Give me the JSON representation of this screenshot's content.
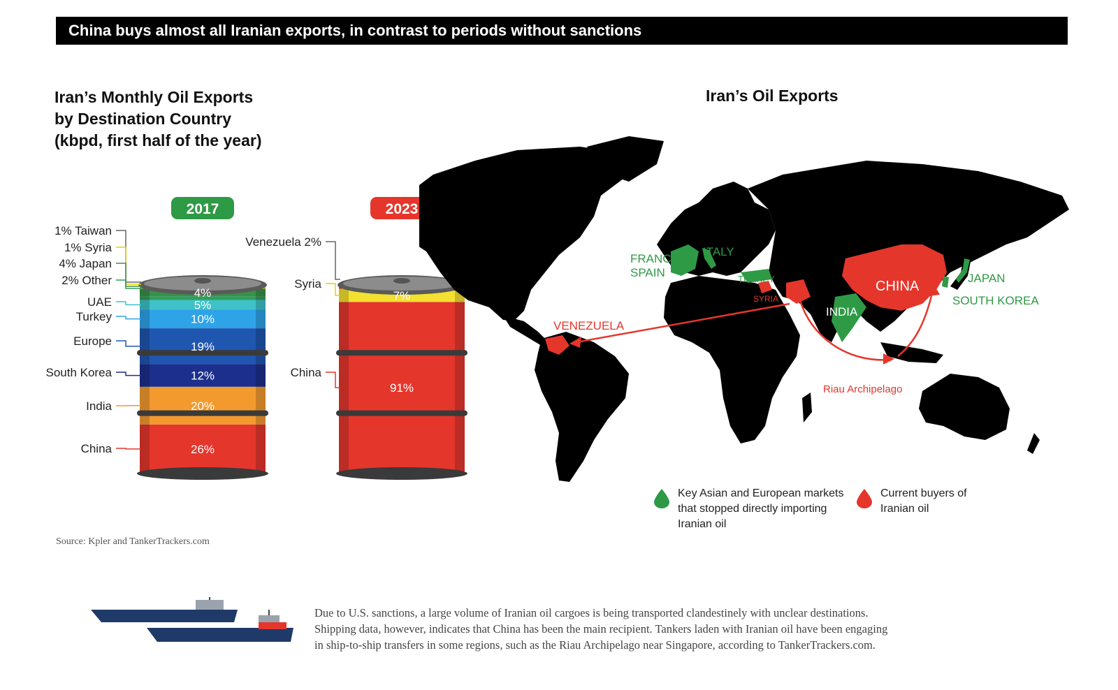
{
  "header": {
    "title": "China buys almost all Iranian exports, in contrast to periods without sanctions"
  },
  "left_title": [
    "Iran’s Monthly Oil Exports",
    "by Destination Country",
    "(kbpd, first half of the year)"
  ],
  "map_title": "Iran’s Oil Exports",
  "chart_data": [
    {
      "type": "bar",
      "title": "2017",
      "stacked": true,
      "segments": [
        {
          "name": "China",
          "value": 26,
          "label": "26%",
          "color": "#e5362c"
        },
        {
          "name": "India",
          "value": 20,
          "label": "20%",
          "color": "#f39a2f"
        },
        {
          "name": "South Korea",
          "value": 12,
          "label": "12%",
          "color": "#1c2f8c"
        },
        {
          "name": "Europe",
          "value": 19,
          "label": "19%",
          "color": "#1f56b0"
        },
        {
          "name": "Turkey",
          "value": 10,
          "label": "10%",
          "color": "#2ea3e8"
        },
        {
          "name": "UAE",
          "value": 5,
          "label": "5%",
          "color": "#3ec1c9"
        },
        {
          "name": "Other",
          "value": 2,
          "label": "",
          "color": "#2f9e5a"
        },
        {
          "name": "Japan",
          "value": 4,
          "label": "4%",
          "color": "#3a8f4a"
        },
        {
          "name": "Syria",
          "value": 1,
          "label": "",
          "color": "#f4e030"
        },
        {
          "name": "Taiwan",
          "value": 1,
          "label": "",
          "color": "#e9d44a"
        }
      ],
      "callouts": [
        {
          "text": "1% Taiwan",
          "line_color": "#666666"
        },
        {
          "text": "1% Syria",
          "line_color": "#e6d200"
        },
        {
          "text": "4% Japan",
          "line_color": "#3a8f4a"
        },
        {
          "text": "2% Other",
          "line_color": "#2f9e5a"
        },
        {
          "text": "UAE",
          "line_color": "#3ec1c9"
        },
        {
          "text": "Turkey",
          "line_color": "#2ea3e8"
        },
        {
          "text": "Europe",
          "line_color": "#1f56b0"
        },
        {
          "text": "South Korea",
          "line_color": "#1c2f8c"
        },
        {
          "text": "India",
          "line_color": "#f39a2f"
        },
        {
          "text": "China",
          "line_color": "#e5362c"
        }
      ]
    },
    {
      "type": "bar",
      "title": "2023",
      "stacked": true,
      "segments": [
        {
          "name": "China",
          "value": 91,
          "label": "91%",
          "color": "#e5362c"
        },
        {
          "name": "Syria",
          "value": 7,
          "label": "7%",
          "color": "#f4e030"
        },
        {
          "name": "Venezuela",
          "value": 2,
          "label": "",
          "color": "#e5362c"
        }
      ],
      "callouts": [
        {
          "text": "Venezuela 2%",
          "line_color": "#666666"
        },
        {
          "text": "Syria",
          "line_color": "#e6d200"
        },
        {
          "text": "China",
          "line_color": "#e5362c"
        }
      ]
    }
  ],
  "badges": {
    "y2017": {
      "text": "2017",
      "color": "#2e9a46"
    },
    "y2023": {
      "text": "2023",
      "color": "#e5362c"
    }
  },
  "map": {
    "green_labels": [
      "FRANCE",
      "SPAIN",
      "ITALY",
      "TURKEY",
      "INDIA",
      "JAPAN",
      "SOUTH KOREA"
    ],
    "red_labels": [
      "CHINA",
      "SYRIA",
      "VENEZUELA",
      "Riau Archipelago"
    ]
  },
  "legend": {
    "green": {
      "lines": [
        "Key Asian and European markets",
        "that stopped directly importing",
        "Iranian oil"
      ],
      "color": "#2e9a46"
    },
    "red": {
      "lines": [
        "Current buyers of",
        "Iranian oil"
      ],
      "color": "#e5362c"
    }
  },
  "source": "Source: Kpler and TankerTrackers.com",
  "note": [
    "Due to U.S. sanctions, a large volume of Iranian oil cargoes is being transported clandestinely with unclear destinations.",
    "Shipping data, however, indicates that China has been the main recipient. Tankers laden with Iranian oil have been engaging",
    "in ship-to-ship transfers in some regions, such as the Riau Archipelago near Singapore, according to TankerTrackers.com."
  ]
}
